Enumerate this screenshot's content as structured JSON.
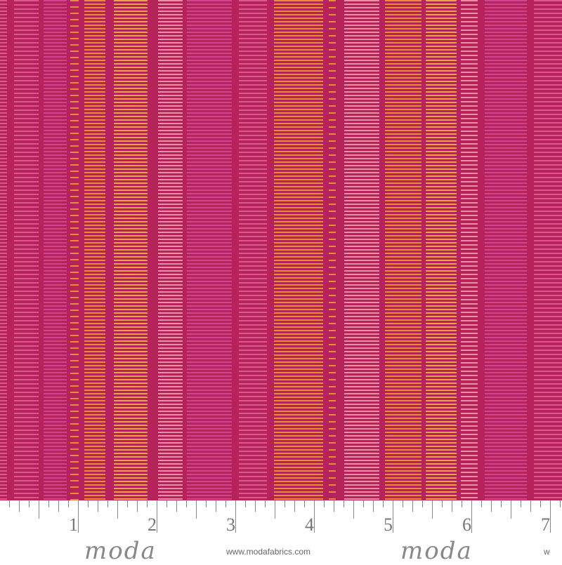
{
  "fabric": {
    "background": "#b5235a",
    "palette": {
      "pink": "#e3609a",
      "magenta": "#d24a98",
      "orange": "#f0a033",
      "yellow": "#f6b94a",
      "lightpink": "#f4a3b4"
    }
  },
  "ruler": {
    "numbers": [
      "1",
      "2",
      "3",
      "4",
      "5",
      "6",
      "7"
    ]
  },
  "branding": {
    "logo": "moda",
    "url": "www.modafabrics.com",
    "url_partial": "w"
  }
}
